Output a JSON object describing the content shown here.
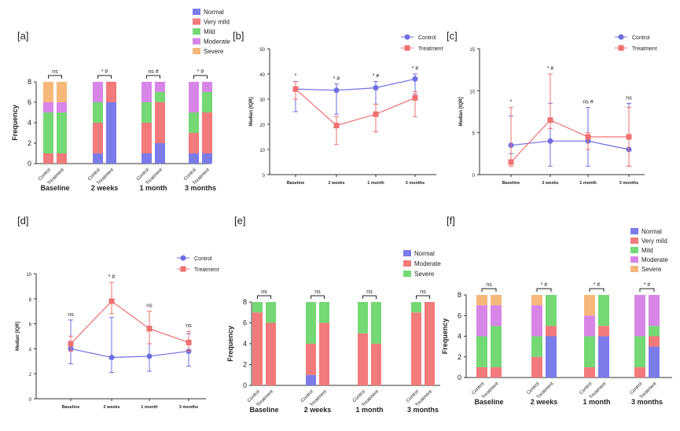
{
  "colors": {
    "normal": "#7b7bea",
    "very_mild": "#f27a7a",
    "mild": "#74d874",
    "moderate": "#d885e8",
    "severe": "#f6b87a",
    "control": "#6e6ee0",
    "treatment": "#ee7070",
    "axis": "#333333"
  },
  "chart_data": [
    {
      "panel": "[a]",
      "type": "bar",
      "stacked": true,
      "ylabel": "Frequency",
      "ylim": [
        0,
        8
      ],
      "yticks": [
        0,
        2,
        4,
        6,
        8
      ],
      "groups": [
        "Baseline",
        "2 weeks",
        "1 month",
        "3 months"
      ],
      "bar_labels": [
        "Control",
        "Treatment"
      ],
      "significance": [
        "ns",
        "* #",
        "ns #",
        "* #"
      ],
      "legend": [
        "Normal",
        "Very mild",
        "Mild",
        "Moderate",
        "Severe"
      ],
      "series_keys": [
        "normal",
        "very_mild",
        "mild",
        "moderate",
        "severe"
      ],
      "stacks": [
        [
          [
            0,
            1,
            4,
            1,
            2
          ],
          [
            0,
            1,
            4,
            1,
            2
          ]
        ],
        [
          [
            1,
            3,
            2,
            2,
            0
          ],
          [
            6,
            2,
            0,
            0,
            0
          ]
        ],
        [
          [
            1,
            3,
            2,
            2,
            0
          ],
          [
            2,
            4,
            1,
            1,
            0
          ]
        ],
        [
          [
            1,
            2,
            2,
            3,
            0
          ],
          [
            1,
            4,
            2,
            1,
            0
          ]
        ]
      ]
    },
    {
      "panel": "[b]",
      "type": "line",
      "ylabel": "Median [IQR]",
      "ylim": [
        0,
        50
      ],
      "yticks": [
        0,
        10,
        20,
        30,
        40,
        50
      ],
      "categories": [
        "Baseline",
        "2 weeks",
        "1 month",
        "3 months"
      ],
      "annotations": [
        "*",
        "* #",
        "* #",
        "* #"
      ],
      "series": [
        {
          "name": "Control",
          "key": "control",
          "values": [
            34,
            33.5,
            34.5,
            38
          ],
          "lower": [
            25,
            24,
            28,
            32
          ],
          "upper": [
            37,
            36,
            37,
            40
          ]
        },
        {
          "name": "Treatment",
          "key": "treatment",
          "values": [
            34,
            19.5,
            24,
            30.5
          ],
          "lower": [
            30,
            12,
            17,
            23
          ],
          "upper": [
            37,
            23,
            28,
            33
          ]
        }
      ]
    },
    {
      "panel": "[c]",
      "type": "line",
      "ylabel": "Median [IQR]",
      "ylim": [
        0,
        15
      ],
      "yticks": [
        0,
        5,
        10,
        15
      ],
      "categories": [
        "Baseline",
        "2 weeks",
        "1 month",
        "3 months"
      ],
      "annotations": [
        "*",
        "* #",
        "ns #",
        "ns"
      ],
      "series": [
        {
          "name": "Control",
          "key": "control",
          "values": [
            3.5,
            4,
            4,
            3
          ],
          "lower": [
            2.5,
            1,
            1,
            1
          ],
          "upper": [
            7,
            8.5,
            8,
            8.5
          ]
        },
        {
          "name": "Treatment",
          "key": "treatment",
          "values": [
            1.5,
            6.5,
            4.5,
            4.5
          ],
          "lower": [
            1,
            5.5,
            3,
            1
          ],
          "upper": [
            8,
            12,
            5,
            8
          ]
        }
      ]
    },
    {
      "panel": "[d]",
      "type": "line",
      "ylabel": "Median [IQR]",
      "ylim": [
        0,
        10
      ],
      "yticks": [
        0,
        2,
        4,
        6,
        8,
        10
      ],
      "categories": [
        "Baseline",
        "2 weeks",
        "1 month",
        "3 months"
      ],
      "annotations": [
        "ns",
        "* #",
        "ns",
        "ns"
      ],
      "series": [
        {
          "name": "Control",
          "key": "control",
          "values": [
            4,
            3.3,
            3.4,
            3.8
          ],
          "lower": [
            2.8,
            2.1,
            2.2,
            2.6
          ],
          "upper": [
            6.3,
            6.5,
            5.8,
            5.2
          ]
        },
        {
          "name": "Treatment",
          "key": "treatment",
          "values": [
            4.4,
            7.8,
            5.6,
            4.5
          ],
          "lower": [
            3.8,
            6.8,
            4.4,
            3.8
          ],
          "upper": [
            5,
            9.3,
            7,
            5.4
          ]
        }
      ]
    },
    {
      "panel": "[e]",
      "type": "bar",
      "stacked": true,
      "ylabel": "Frequency",
      "ylim": [
        0,
        8
      ],
      "yticks": [
        0,
        2,
        4,
        6,
        8
      ],
      "groups": [
        "Baseline",
        "2 weeks",
        "1 month",
        "3 months"
      ],
      "bar_labels": [
        "Control",
        "Treatment"
      ],
      "significance": [
        "ns",
        "ns",
        "ns",
        "ns"
      ],
      "legend": [
        "Normal",
        "Moderate",
        "Severe"
      ],
      "series_keys": [
        "normal",
        "very_mild",
        "mild"
      ],
      "stacks": [
        [
          [
            0,
            7,
            1
          ],
          [
            0,
            6,
            2
          ]
        ],
        [
          [
            1,
            3,
            4
          ],
          [
            0,
            6,
            2
          ]
        ],
        [
          [
            0,
            5,
            3
          ],
          [
            0,
            4,
            4
          ]
        ],
        [
          [
            0,
            7,
            1
          ],
          [
            0,
            8,
            0
          ]
        ]
      ]
    },
    {
      "panel": "[f]",
      "type": "bar",
      "stacked": true,
      "ylabel": "Frequency",
      "ylim": [
        0,
        8
      ],
      "yticks": [
        0,
        2,
        4,
        6,
        8
      ],
      "groups": [
        "Baseline",
        "2 weeks",
        "1 month",
        "3 months"
      ],
      "bar_labels": [
        "Control",
        "Treatment"
      ],
      "significance": [
        "ns",
        "* #",
        "* #",
        "* #"
      ],
      "legend": [
        "Normal",
        "Very mild",
        "Mild",
        "Moderate",
        "Severe"
      ],
      "series_keys": [
        "normal",
        "very_mild",
        "mild",
        "moderate",
        "severe"
      ],
      "stacks": [
        [
          [
            0,
            1,
            3,
            3,
            1
          ],
          [
            0,
            1,
            4,
            2,
            1
          ]
        ],
        [
          [
            0,
            2,
            2,
            3,
            1
          ],
          [
            4,
            1,
            3,
            0,
            0
          ]
        ],
        [
          [
            0,
            1,
            3,
            2,
            2
          ],
          [
            4,
            1,
            3,
            0,
            0
          ]
        ],
        [
          [
            0,
            1,
            3,
            4,
            0
          ],
          [
            3,
            1,
            1,
            3,
            0
          ]
        ]
      ]
    }
  ]
}
